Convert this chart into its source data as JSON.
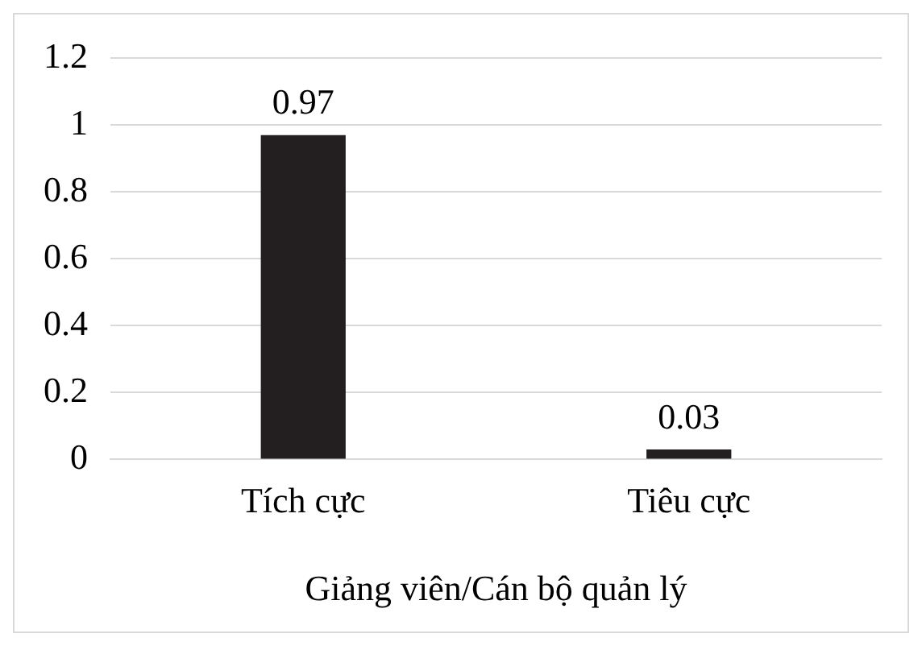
{
  "chart_data": {
    "type": "bar",
    "xlabel": "Giảng viên/Cán bộ quản lý",
    "categories": [
      "Tích cực",
      "Tiêu cực"
    ],
    "values": [
      0.97,
      0.03
    ],
    "color": "#231f20",
    "ylim": [
      0,
      1.2
    ],
    "yticks": [
      0,
      0.2,
      0.4,
      0.6,
      0.8,
      1,
      1.2
    ],
    "grid": "y",
    "data_labels": true,
    "legend": false
  }
}
